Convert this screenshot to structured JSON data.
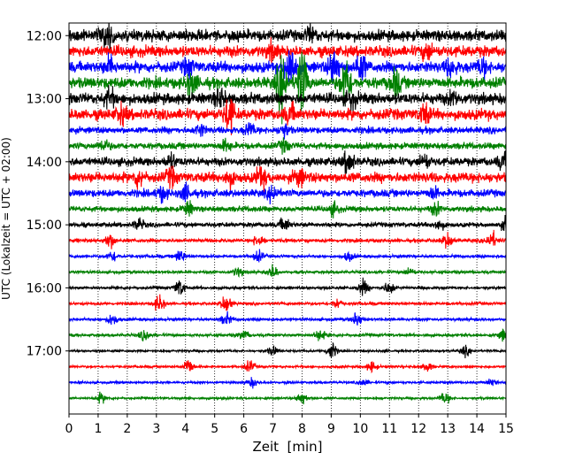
{
  "chart_data": {
    "type": "line",
    "title": "",
    "xlabel": "Zeit  [min]",
    "ylabel": "UTC (Lokalzeit = UTC + 02:00)",
    "xlim": [
      0,
      15
    ],
    "x_ticks": [
      "0",
      "1",
      "2",
      "3",
      "4",
      "5",
      "6",
      "7",
      "8",
      "9",
      "10",
      "11",
      "12",
      "13",
      "14",
      "15"
    ],
    "y_ticks": [
      {
        "label": "12:00",
        "hour": 12.0
      },
      {
        "label": "13:00",
        "hour": 13.0
      },
      {
        "label": "14:00",
        "hour": 14.0
      },
      {
        "label": "15:00",
        "hour": 15.0
      },
      {
        "label": "16:00",
        "hour": 16.0
      },
      {
        "label": "17:00",
        "hour": 17.0
      }
    ],
    "ylim_hours": [
      11.8,
      18.0
    ],
    "grid": "vertical-dotted",
    "trace_colors": [
      "#000000",
      "#ff0000",
      "#0000ff",
      "#008000"
    ],
    "traces": [
      {
        "start": "12:00",
        "amp": 0.6,
        "events": [
          [
            1.3,
            1.5
          ],
          [
            8.3,
            0.8
          ]
        ]
      },
      {
        "start": "12:15",
        "amp": 0.6,
        "events": [
          [
            7.0,
            0.8
          ],
          [
            12.3,
            0.8
          ]
        ]
      },
      {
        "start": "12:30",
        "amp": 0.6,
        "events": [
          [
            1.4,
            0.9
          ],
          [
            4.1,
            0.8
          ],
          [
            7.6,
            2.5
          ],
          [
            9.1,
            2.0
          ],
          [
            10.0,
            1.6
          ],
          [
            13.1,
            0.9
          ],
          [
            14.2,
            0.8
          ]
        ]
      },
      {
        "start": "12:45",
        "amp": 0.6,
        "events": [
          [
            4.2,
            1.2
          ],
          [
            7.3,
            3.0
          ],
          [
            8.0,
            3.5
          ],
          [
            9.5,
            2.8
          ],
          [
            11.2,
            1.3
          ]
        ]
      },
      {
        "start": "13:00",
        "amp": 0.6,
        "events": [
          [
            1.4,
            0.9
          ],
          [
            5.2,
            0.9
          ],
          [
            9.7,
            0.8
          ],
          [
            13.2,
            0.6
          ]
        ]
      },
      {
        "start": "13:15",
        "amp": 0.6,
        "events": [
          [
            1.8,
            0.8
          ],
          [
            5.5,
            1.8
          ],
          [
            7.6,
            0.9
          ],
          [
            12.2,
            1.0
          ]
        ]
      },
      {
        "start": "13:30",
        "amp": 0.35,
        "events": [
          [
            4.5,
            0.6
          ],
          [
            6.2,
            0.7
          ],
          [
            7.4,
            0.7
          ]
        ]
      },
      {
        "start": "13:45",
        "amp": 0.35,
        "events": [
          [
            1.2,
            0.6
          ],
          [
            5.4,
            0.6
          ],
          [
            7.4,
            0.6
          ]
        ]
      },
      {
        "start": "14:00",
        "amp": 0.45,
        "events": [
          [
            3.5,
            0.7
          ],
          [
            9.6,
            1.3
          ],
          [
            12.2,
            0.7
          ],
          [
            14.9,
            0.8
          ]
        ]
      },
      {
        "start": "14:15",
        "amp": 0.55,
        "events": [
          [
            2.4,
            0.9
          ],
          [
            3.5,
            0.8
          ],
          [
            5.5,
            0.8
          ],
          [
            6.6,
            1.0
          ],
          [
            7.9,
            0.9
          ]
        ]
      },
      {
        "start": "14:30",
        "amp": 0.4,
        "events": [
          [
            3.2,
            0.7
          ],
          [
            4.0,
            0.8
          ],
          [
            7.0,
            0.8
          ],
          [
            12.5,
            0.6
          ]
        ]
      },
      {
        "start": "14:45",
        "amp": 0.3,
        "events": [
          [
            4.1,
            0.7
          ],
          [
            9.1,
            0.6
          ],
          [
            12.6,
            0.6
          ]
        ]
      },
      {
        "start": "15:00",
        "amp": 0.25,
        "events": [
          [
            2.4,
            0.6
          ],
          [
            7.4,
            0.7
          ],
          [
            12.7,
            0.6
          ],
          [
            15.0,
            0.6
          ]
        ]
      },
      {
        "start": "15:15",
        "amp": 0.2,
        "events": [
          [
            1.4,
            0.8
          ],
          [
            6.5,
            0.6
          ],
          [
            13.0,
            0.8
          ],
          [
            14.5,
            0.9
          ]
        ]
      },
      {
        "start": "15:30",
        "amp": 0.15,
        "events": [
          [
            1.5,
            0.6
          ],
          [
            3.8,
            0.7
          ],
          [
            6.5,
            0.6
          ],
          [
            9.6,
            0.5
          ]
        ]
      },
      {
        "start": "15:45",
        "amp": 0.15,
        "events": [
          [
            5.8,
            0.5
          ],
          [
            7.0,
            0.7
          ],
          [
            11.7,
            0.4
          ]
        ]
      },
      {
        "start": "16:00",
        "amp": 0.15,
        "events": [
          [
            3.8,
            0.9
          ],
          [
            10.1,
            0.8
          ],
          [
            11.0,
            0.7
          ]
        ]
      },
      {
        "start": "16:15",
        "amp": 0.15,
        "events": [
          [
            3.1,
            0.9
          ],
          [
            5.4,
            1.0
          ],
          [
            9.2,
            0.5
          ]
        ]
      },
      {
        "start": "16:30",
        "amp": 0.15,
        "events": [
          [
            1.5,
            0.6
          ],
          [
            5.4,
            0.6
          ],
          [
            9.9,
            0.8
          ]
        ]
      },
      {
        "start": "16:45",
        "amp": 0.15,
        "events": [
          [
            2.6,
            0.6
          ],
          [
            6.0,
            0.5
          ],
          [
            8.6,
            0.6
          ],
          [
            14.9,
            0.6
          ]
        ]
      },
      {
        "start": "17:00",
        "amp": 0.12,
        "events": [
          [
            7.0,
            0.5
          ],
          [
            9.0,
            0.9
          ],
          [
            13.6,
            0.5
          ]
        ]
      },
      {
        "start": "17:15",
        "amp": 0.12,
        "events": [
          [
            4.1,
            0.9
          ],
          [
            6.2,
            0.6
          ],
          [
            10.4,
            0.6
          ],
          [
            12.3,
            0.5
          ]
        ]
      },
      {
        "start": "17:30",
        "amp": 0.12,
        "events": [
          [
            6.3,
            0.5
          ],
          [
            10.1,
            0.4
          ],
          [
            14.5,
            0.4
          ]
        ]
      },
      {
        "start": "17:45",
        "amp": 0.12,
        "events": [
          [
            1.1,
            0.5
          ],
          [
            8.0,
            0.7
          ],
          [
            12.9,
            0.6
          ]
        ]
      }
    ]
  }
}
